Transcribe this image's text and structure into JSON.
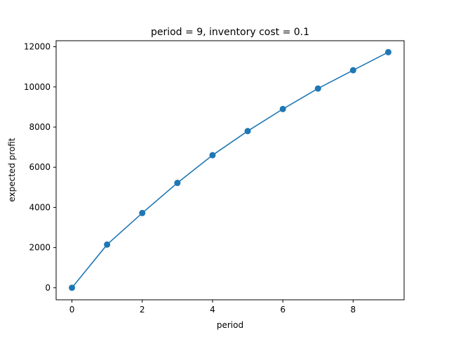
{
  "chart_data": {
    "type": "line",
    "title": "period = 9, inventory cost = 0.1",
    "xlabel": "period",
    "ylabel": "expected profit",
    "xlim": [
      -0.45,
      9.45
    ],
    "ylim": [
      -600,
      12300
    ],
    "xticks": [
      0,
      2,
      4,
      6,
      8
    ],
    "yticks": [
      0,
      2000,
      4000,
      6000,
      8000,
      10000,
      12000
    ],
    "grid": false,
    "legend": null,
    "marker": "circle",
    "color": "#1f77b4",
    "series": [
      {
        "x": [
          0,
          1,
          2,
          3,
          4,
          5,
          6,
          7,
          8,
          9
        ],
        "values": [
          0,
          2150,
          3720,
          5220,
          6600,
          7800,
          8900,
          9920,
          10830,
          11730
        ]
      }
    ]
  }
}
